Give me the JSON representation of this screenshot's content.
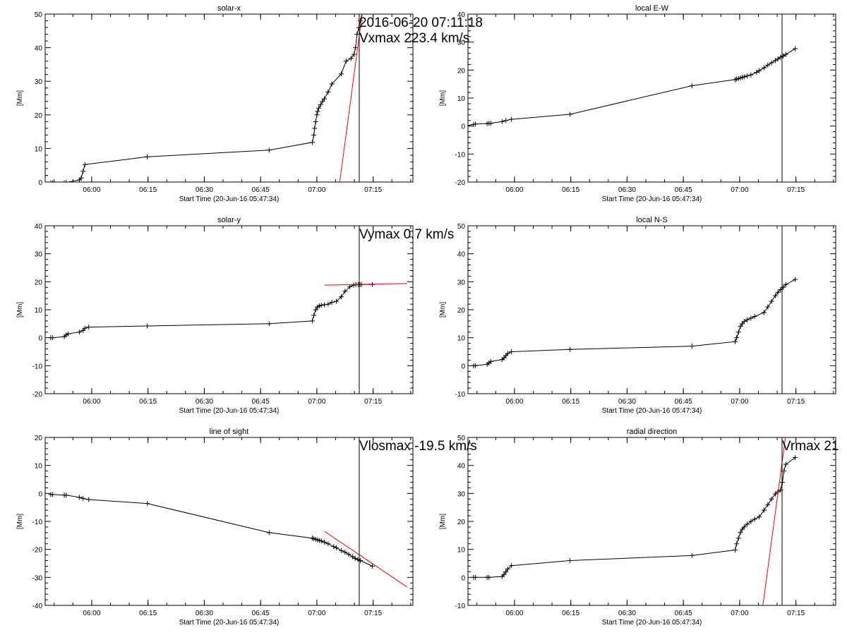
{
  "headline": {
    "timestamp": "2016-06-20 07:11:18",
    "vxmax": "Vxmax  223.4 km/s",
    "vymax": "Vymax    0.7 km/s",
    "vlosmax": "Vlosmax  -19.5 km/s",
    "vrmax": "Vrmax  21"
  },
  "colors": {
    "data": "#000000",
    "fit": "#ff0000",
    "marker": "#000000"
  },
  "chart_data": [
    {
      "type": "line",
      "title": "solar-x",
      "xlabel": "Start Time (20-Jun-16 05:47:34)",
      "ylabel": "[Mm]",
      "x_unit": "minutes after 05:47:34",
      "xlim": [
        0,
        98
      ],
      "ylim": [
        0,
        50
      ],
      "xticks": [
        {
          "x": 12.4,
          "label": "06:00"
        },
        {
          "x": 27.4,
          "label": "06:15"
        },
        {
          "x": 42.4,
          "label": "06:30"
        },
        {
          "x": 57.4,
          "label": "06:45"
        },
        {
          "x": 72.4,
          "label": "07:00"
        },
        {
          "x": 87.4,
          "label": "07:15"
        }
      ],
      "yticks": [
        0,
        10,
        20,
        30,
        40,
        50
      ],
      "marker_time": 83.7,
      "annotations": [
        "headline.timestamp",
        "headline.vxmax"
      ],
      "series": [
        {
          "x": [
            1.5,
            2,
            5.1,
            5.6,
            9.1,
            9.6,
            10.1,
            10.6,
            27.2,
            59.7,
            71.2,
            71.6,
            71.8,
            72.1,
            72.4,
            72.6,
            72.9,
            73.4,
            73.9,
            74.4,
            75.4,
            76.4,
            78.9,
            80.2,
            81.5,
            82.3,
            82.7,
            83.1,
            83.6,
            84.0,
            84.4
          ],
          "y": [
            -0.2,
            -0.2,
            -0.3,
            -0.1,
            0.6,
            1.2,
            3.2,
            5.2,
            7.5,
            9.5,
            11.8,
            14.0,
            16.0,
            18.0,
            20.0,
            21.0,
            22.0,
            23.0,
            24.0,
            24.8,
            26.8,
            29.2,
            32.2,
            36.0,
            36.8,
            38.0,
            40.0,
            44.0,
            46.0,
            48.0,
            50.0
          ]
        }
      ],
      "fit": {
        "x": [
          78.5,
          84.7
        ],
        "y": [
          0,
          52
        ]
      }
    },
    {
      "type": "line",
      "title": "local E-W",
      "xlabel": "Start Time (20-Jun-16 05:47:34)",
      "ylabel": "[Mm]",
      "x_unit": "minutes after 05:47:34",
      "xlim": [
        0,
        98
      ],
      "ylim": [
        -20,
        40
      ],
      "xticks": [
        {
          "x": 12.4,
          "label": "06:00"
        },
        {
          "x": 27.4,
          "label": "06:15"
        },
        {
          "x": 42.4,
          "label": "06:30"
        },
        {
          "x": 57.4,
          "label": "06:45"
        },
        {
          "x": 72.4,
          "label": "07:00"
        },
        {
          "x": 87.4,
          "label": "07:15"
        }
      ],
      "yticks": [
        -20,
        -10,
        0,
        10,
        20,
        30,
        40
      ],
      "marker_time": 83.7,
      "annotations": [],
      "series": [
        {
          "x": [
            0,
            1.5,
            2,
            5.1,
            5.6,
            6.1,
            9.1,
            10.1,
            11.6,
            27.2,
            59.7,
            71.2,
            71.6,
            72.1,
            72.6,
            73.1,
            73.6,
            74.4,
            75.4,
            76.9,
            77.6,
            78.9,
            79.9,
            80.9,
            81.9,
            82.6,
            83.3,
            84.0,
            84.7,
            87.2
          ],
          "y": [
            0.2,
            0.6,
            0.7,
            0.9,
            1.0,
            1.0,
            1.6,
            2.0,
            2.4,
            4.2,
            14.4,
            16.6,
            16.8,
            17.0,
            17.2,
            17.4,
            17.6,
            17.9,
            18.3,
            19.2,
            19.8,
            20.8,
            21.8,
            22.6,
            23.4,
            24.0,
            24.6,
            25.0,
            25.6,
            27.6
          ]
        }
      ],
      "fit": null
    },
    {
      "type": "line",
      "title": "solar-y",
      "xlabel": "Start Time (20-Jun-16 05:47:34)",
      "ylabel": "[Mm]",
      "x_unit": "minutes after 05:47:34",
      "xlim": [
        0,
        98
      ],
      "ylim": [
        -20,
        40
      ],
      "xticks": [
        {
          "x": 12.4,
          "label": "06:00"
        },
        {
          "x": 27.4,
          "label": "06:15"
        },
        {
          "x": 42.4,
          "label": "06:30"
        },
        {
          "x": 57.4,
          "label": "06:45"
        },
        {
          "x": 72.4,
          "label": "07:00"
        },
        {
          "x": 87.4,
          "label": "07:15"
        }
      ],
      "yticks": [
        -20,
        -10,
        0,
        10,
        20,
        30,
        40
      ],
      "marker_time": 83.7,
      "annotations": [
        "headline.vymax"
      ],
      "series": [
        {
          "x": [
            1.5,
            2,
            5.1,
            5.6,
            6.1,
            9.1,
            10.1,
            10.6,
            11.6,
            27.2,
            59.7,
            71.2,
            71.6,
            72.1,
            72.6,
            73.1,
            73.6,
            74.4,
            75.4,
            76.4,
            77.6,
            78.9,
            79.9,
            81.2,
            82.2,
            82.8,
            83.4,
            83.9,
            84.3,
            87.2
          ],
          "y": [
            0.0,
            0.0,
            0.4,
            1.0,
            1.4,
            2.0,
            2.6,
            3.4,
            3.8,
            4.2,
            5.0,
            6.0,
            8.0,
            10.0,
            11.0,
            11.4,
            11.6,
            11.8,
            12.0,
            12.6,
            13.0,
            14.6,
            16.6,
            18.2,
            18.8,
            19.0,
            19.0,
            19.0,
            19.0,
            19.0
          ]
        }
      ],
      "fit": {
        "x": [
          74.4,
          96.5
        ],
        "y": [
          18.8,
          19.4
        ]
      }
    },
    {
      "type": "line",
      "title": "local N-S",
      "xlabel": "Start Time (20-Jun-16 05:47:34)",
      "ylabel": "[Mm]",
      "x_unit": "minutes after 05:47:34",
      "xlim": [
        0,
        98
      ],
      "ylim": [
        -10,
        50
      ],
      "xticks": [
        {
          "x": 12.4,
          "label": "06:00"
        },
        {
          "x": 27.4,
          "label": "06:15"
        },
        {
          "x": 42.4,
          "label": "06:30"
        },
        {
          "x": 57.4,
          "label": "06:45"
        },
        {
          "x": 72.4,
          "label": "07:00"
        },
        {
          "x": 87.4,
          "label": "07:15"
        }
      ],
      "yticks": [
        -10,
        0,
        10,
        20,
        30,
        40,
        50
      ],
      "marker_time": 83.7,
      "annotations": [],
      "series": [
        {
          "x": [
            1.5,
            2,
            5.1,
            5.6,
            6.1,
            9.1,
            9.6,
            10.1,
            10.6,
            11.6,
            27.2,
            59.7,
            71.2,
            71.6,
            72.1,
            72.6,
            73.1,
            73.6,
            74.4,
            75.4,
            76.4,
            78.9,
            79.9,
            80.9,
            81.9,
            82.6,
            83.3,
            84.0,
            84.7,
            87.2
          ],
          "y": [
            0.0,
            0.0,
            0.5,
            1.0,
            1.5,
            2.2,
            2.8,
            3.6,
            4.4,
            5.0,
            5.8,
            7.0,
            8.6,
            10.0,
            12.0,
            14.0,
            15.0,
            15.8,
            16.4,
            17.0,
            17.6,
            19.0,
            21.0,
            23.0,
            25.0,
            26.2,
            27.2,
            28.0,
            29.0,
            30.8
          ]
        }
      ],
      "fit": null
    },
    {
      "type": "line",
      "title": "line of sight",
      "xlabel": "Start Time (20-Jun-16 05:47:34)",
      "ylabel": "[Mm]",
      "x_unit": "minutes after 05:47:34",
      "xlim": [
        0,
        98
      ],
      "ylim": [
        -40,
        20
      ],
      "xticks": [
        {
          "x": 12.4,
          "label": "06:00"
        },
        {
          "x": 27.4,
          "label": "06:15"
        },
        {
          "x": 42.4,
          "label": "06:30"
        },
        {
          "x": 57.4,
          "label": "06:45"
        },
        {
          "x": 72.4,
          "label": "07:00"
        },
        {
          "x": 87.4,
          "label": "07:15"
        }
      ],
      "yticks": [
        -40,
        -30,
        -20,
        -10,
        0,
        10,
        20
      ],
      "marker_time": 83.7,
      "annotations": [
        "headline.vlosmax"
      ],
      "series": [
        {
          "x": [
            1.5,
            2,
            5.1,
            5.6,
            9.1,
            10.1,
            11.6,
            27.2,
            59.7,
            71.2,
            71.6,
            72.1,
            72.6,
            73.1,
            73.6,
            74.4,
            75.4,
            76.9,
            77.6,
            78.9,
            79.9,
            80.9,
            81.9,
            82.6,
            83.3,
            84.0,
            87.2
          ],
          "y": [
            -0.4,
            -0.4,
            -0.6,
            -0.6,
            -1.4,
            -1.8,
            -2.2,
            -3.6,
            -14.0,
            -16.0,
            -16.2,
            -16.4,
            -16.6,
            -16.8,
            -17.0,
            -17.4,
            -18.0,
            -19.0,
            -19.4,
            -20.4,
            -21.0,
            -21.8,
            -22.6,
            -23.2,
            -23.6,
            -24.0,
            -26.0
          ]
        }
      ],
      "fit": {
        "x": [
          74.4,
          96.5
        ],
        "y": [
          -13.5,
          -33.5
        ]
      }
    },
    {
      "type": "line",
      "title": "radial direction",
      "xlabel": "Start Time (20-Jun-16 05:47:34)",
      "ylabel": "[Mm]",
      "x_unit": "minutes after 05:47:34",
      "xlim": [
        0,
        98
      ],
      "ylim": [
        -10,
        50
      ],
      "xticks": [
        {
          "x": 12.4,
          "label": "06:00"
        },
        {
          "x": 27.4,
          "label": "06:15"
        },
        {
          "x": 42.4,
          "label": "06:30"
        },
        {
          "x": 57.4,
          "label": "06:45"
        },
        {
          "x": 72.4,
          "label": "07:00"
        },
        {
          "x": 87.4,
          "label": "07:15"
        }
      ],
      "yticks": [
        -10,
        0,
        10,
        20,
        30,
        40,
        50
      ],
      "marker_time": 83.7,
      "annotations": [
        "headline.vrmax"
      ],
      "series": [
        {
          "x": [
            1.5,
            2,
            5.1,
            5.6,
            9.1,
            9.6,
            10.1,
            10.6,
            11.6,
            27.2,
            59.7,
            71.2,
            71.6,
            72.1,
            72.6,
            73.1,
            73.6,
            74.4,
            75.4,
            76.4,
            77.6,
            78.9,
            79.9,
            80.9,
            81.9,
            82.6,
            83.3,
            83.8,
            84.2,
            84.7,
            87.2
          ],
          "y": [
            0.0,
            0.0,
            0.0,
            0.0,
            0.3,
            1.0,
            2.0,
            3.0,
            4.2,
            6.0,
            7.8,
            9.8,
            12.0,
            14.0,
            16.0,
            17.2,
            18.0,
            19.0,
            20.0,
            20.8,
            21.6,
            24.0,
            26.0,
            28.0,
            29.8,
            30.6,
            31.2,
            34.0,
            38.0,
            40.4,
            42.8
          ]
        }
      ],
      "fit": {
        "x": [
          78.6,
          84.6
        ],
        "y": [
          -10,
          50
        ]
      }
    }
  ]
}
